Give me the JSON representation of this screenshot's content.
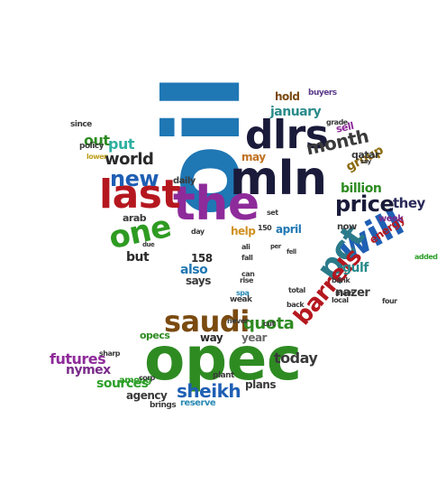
{
  "word_cloud": {
    "shape": "twitter-bird",
    "words": [
      {
        "text": "oil",
        "color": "#1f77b4"
      },
      {
        "text": "opec",
        "color": "#2e8b22"
      },
      {
        "text": "mln",
        "color": "#1a1a3a"
      },
      {
        "text": "the",
        "color": "#8e2b9a"
      },
      {
        "text": "last",
        "color": "#b5171f"
      },
      {
        "text": "dlrs",
        "color": "#1a1a3a"
      },
      {
        "text": "will",
        "color": "#1f5fb4"
      },
      {
        "text": "saudi",
        "color": "#7a4a10"
      },
      {
        "text": "one",
        "color": "#2e9b22"
      },
      {
        "text": "pct",
        "color": "#2a7a8a"
      },
      {
        "text": "price",
        "color": "#1a1a3a"
      },
      {
        "text": "new",
        "color": "#1f5fb4"
      },
      {
        "text": "barrels",
        "color": "#b5171f"
      },
      {
        "text": "sheikh",
        "color": "#1f5fb4"
      },
      {
        "text": "quota",
        "color": "#2e8b22"
      },
      {
        "text": "futures",
        "color": "#8e2b9a"
      },
      {
        "text": "month",
        "color": "#3a3a3a"
      },
      {
        "text": "world",
        "color": "#2a2a2a"
      },
      {
        "text": "sources",
        "color": "#2ea02a"
      },
      {
        "text": "today",
        "color": "#3a3a3a"
      },
      {
        "text": "nymex",
        "color": "#7a2a8a"
      },
      {
        "text": "gulf",
        "color": "#2a8a8a"
      },
      {
        "text": "billion",
        "color": "#2e8b22"
      },
      {
        "text": "put",
        "color": "#2eb0a0"
      },
      {
        "text": "out",
        "color": "#2e8b22"
      },
      {
        "text": "group",
        "color": "#8a6a10"
      },
      {
        "text": "also",
        "color": "#1f77b4"
      },
      {
        "text": "they",
        "color": "#2a2a5a"
      },
      {
        "text": "january",
        "color": "#2a8a8a"
      },
      {
        "text": "energy",
        "color": "#b5171f"
      },
      {
        "text": "nazer",
        "color": "#3a3a3a"
      },
      {
        "text": "hold",
        "color": "#7a4a10"
      },
      {
        "text": "april",
        "color": "#1f77b4"
      },
      {
        "text": "may",
        "color": "#c07020"
      },
      {
        "text": "but",
        "color": "#2a2a2a"
      },
      {
        "text": "help",
        "color": "#d09020"
      },
      {
        "text": "says",
        "color": "#3a3a3a"
      },
      {
        "text": "158",
        "color": "#2a2a2a"
      },
      {
        "text": "way",
        "color": "#2a2a2a"
      },
      {
        "text": "year",
        "color": "#6a6a6a"
      },
      {
        "text": "plans",
        "color": "#3a3a3a"
      },
      {
        "text": "agency",
        "color": "#3a3a3a"
      },
      {
        "text": "reserve",
        "color": "#2a8ab4"
      },
      {
        "text": "opecs",
        "color": "#2e8b22"
      },
      {
        "text": "qatar",
        "color": "#3a3a3a"
      },
      {
        "text": "daily",
        "color": "#3a3a3a"
      },
      {
        "text": "arab",
        "color": "#3a3a3a"
      },
      {
        "text": "sell",
        "color": "#8e2b9a"
      },
      {
        "text": "week",
        "color": "#7a2a8a"
      },
      {
        "text": "now",
        "color": "#3a3a3a"
      },
      {
        "text": "buyers",
        "color": "#5a3a8a"
      },
      {
        "text": "among",
        "color": "#2ea02a"
      },
      {
        "text": "brings",
        "color": "#3a3a3a"
      },
      {
        "text": "policy",
        "color": "#3a3a3a"
      },
      {
        "text": "since",
        "color": "#3a3a3a"
      },
      {
        "text": "corp",
        "color": "#3a3a3a"
      },
      {
        "text": "plant",
        "color": "#3a3a3a"
      },
      {
        "text": "sharp",
        "color": "#3a3a3a"
      },
      {
        "text": "weak",
        "color": "#3a3a3a"
      },
      {
        "text": "never",
        "color": "#3a3a3a"
      },
      {
        "text": "total",
        "color": "#3a3a3a"
      },
      {
        "text": "rise",
        "color": "#3a3a3a"
      },
      {
        "text": "fall",
        "color": "#3a3a3a"
      },
      {
        "text": "cut",
        "color": "#3a3a3a"
      },
      {
        "text": "set",
        "color": "#3a3a3a"
      },
      {
        "text": "added",
        "color": "#2ea02a"
      },
      {
        "text": "local",
        "color": "#3a3a3a"
      },
      {
        "text": "grade",
        "color": "#3a3a3a"
      },
      {
        "text": "main",
        "color": "#3a3a3a"
      },
      {
        "text": "lower",
        "color": "#c0a020"
      },
      {
        "text": "150",
        "color": "#3a3a3a"
      },
      {
        "text": "can",
        "color": "#3a3a3a"
      },
      {
        "text": "day",
        "color": "#3a3a3a"
      },
      {
        "text": "due",
        "color": "#3a3a3a"
      },
      {
        "text": "four",
        "color": "#3a3a3a"
      },
      {
        "text": "back",
        "color": "#3a3a3a"
      },
      {
        "text": "bank",
        "color": "#3a3a3a"
      },
      {
        "text": "spa",
        "color": "#2a8ab4"
      },
      {
        "text": "say",
        "color": "#3a3a3a"
      },
      {
        "text": "per",
        "color": "#3a3a3a"
      },
      {
        "text": "ali",
        "color": "#3a3a3a"
      },
      {
        "text": "fell",
        "color": "#3a3a3a"
      }
    ]
  }
}
